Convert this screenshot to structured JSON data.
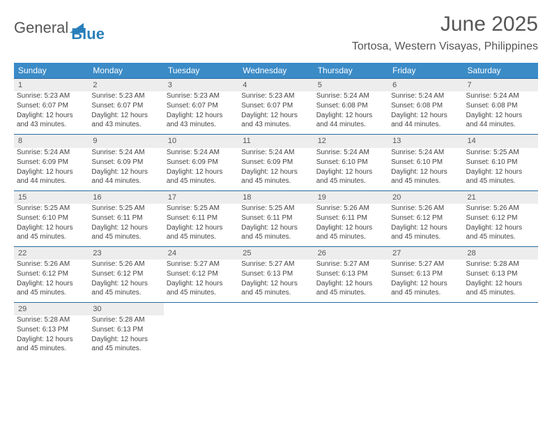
{
  "logo": {
    "text1": "General",
    "text2": "Blue"
  },
  "title": "June 2025",
  "location": "Tortosa, Western Visayas, Philippines",
  "colors": {
    "header_bg": "#3b8bc7",
    "daynum_bg": "#ededed",
    "rule": "#2a6aa0",
    "text": "#444444"
  },
  "weekdays": [
    "Sunday",
    "Monday",
    "Tuesday",
    "Wednesday",
    "Thursday",
    "Friday",
    "Saturday"
  ],
  "days": [
    {
      "n": 1,
      "sr": "5:23 AM",
      "ss": "6:07 PM",
      "dl": "12 hours and 43 minutes."
    },
    {
      "n": 2,
      "sr": "5:23 AM",
      "ss": "6:07 PM",
      "dl": "12 hours and 43 minutes."
    },
    {
      "n": 3,
      "sr": "5:23 AM",
      "ss": "6:07 PM",
      "dl": "12 hours and 43 minutes."
    },
    {
      "n": 4,
      "sr": "5:23 AM",
      "ss": "6:07 PM",
      "dl": "12 hours and 43 minutes."
    },
    {
      "n": 5,
      "sr": "5:24 AM",
      "ss": "6:08 PM",
      "dl": "12 hours and 44 minutes."
    },
    {
      "n": 6,
      "sr": "5:24 AM",
      "ss": "6:08 PM",
      "dl": "12 hours and 44 minutes."
    },
    {
      "n": 7,
      "sr": "5:24 AM",
      "ss": "6:08 PM",
      "dl": "12 hours and 44 minutes."
    },
    {
      "n": 8,
      "sr": "5:24 AM",
      "ss": "6:09 PM",
      "dl": "12 hours and 44 minutes."
    },
    {
      "n": 9,
      "sr": "5:24 AM",
      "ss": "6:09 PM",
      "dl": "12 hours and 44 minutes."
    },
    {
      "n": 10,
      "sr": "5:24 AM",
      "ss": "6:09 PM",
      "dl": "12 hours and 45 minutes."
    },
    {
      "n": 11,
      "sr": "5:24 AM",
      "ss": "6:09 PM",
      "dl": "12 hours and 45 minutes."
    },
    {
      "n": 12,
      "sr": "5:24 AM",
      "ss": "6:10 PM",
      "dl": "12 hours and 45 minutes."
    },
    {
      "n": 13,
      "sr": "5:24 AM",
      "ss": "6:10 PM",
      "dl": "12 hours and 45 minutes."
    },
    {
      "n": 14,
      "sr": "5:25 AM",
      "ss": "6:10 PM",
      "dl": "12 hours and 45 minutes."
    },
    {
      "n": 15,
      "sr": "5:25 AM",
      "ss": "6:10 PM",
      "dl": "12 hours and 45 minutes."
    },
    {
      "n": 16,
      "sr": "5:25 AM",
      "ss": "6:11 PM",
      "dl": "12 hours and 45 minutes."
    },
    {
      "n": 17,
      "sr": "5:25 AM",
      "ss": "6:11 PM",
      "dl": "12 hours and 45 minutes."
    },
    {
      "n": 18,
      "sr": "5:25 AM",
      "ss": "6:11 PM",
      "dl": "12 hours and 45 minutes."
    },
    {
      "n": 19,
      "sr": "5:26 AM",
      "ss": "6:11 PM",
      "dl": "12 hours and 45 minutes."
    },
    {
      "n": 20,
      "sr": "5:26 AM",
      "ss": "6:12 PM",
      "dl": "12 hours and 45 minutes."
    },
    {
      "n": 21,
      "sr": "5:26 AM",
      "ss": "6:12 PM",
      "dl": "12 hours and 45 minutes."
    },
    {
      "n": 22,
      "sr": "5:26 AM",
      "ss": "6:12 PM",
      "dl": "12 hours and 45 minutes."
    },
    {
      "n": 23,
      "sr": "5:26 AM",
      "ss": "6:12 PM",
      "dl": "12 hours and 45 minutes."
    },
    {
      "n": 24,
      "sr": "5:27 AM",
      "ss": "6:12 PM",
      "dl": "12 hours and 45 minutes."
    },
    {
      "n": 25,
      "sr": "5:27 AM",
      "ss": "6:13 PM",
      "dl": "12 hours and 45 minutes."
    },
    {
      "n": 26,
      "sr": "5:27 AM",
      "ss": "6:13 PM",
      "dl": "12 hours and 45 minutes."
    },
    {
      "n": 27,
      "sr": "5:27 AM",
      "ss": "6:13 PM",
      "dl": "12 hours and 45 minutes."
    },
    {
      "n": 28,
      "sr": "5:28 AM",
      "ss": "6:13 PM",
      "dl": "12 hours and 45 minutes."
    },
    {
      "n": 29,
      "sr": "5:28 AM",
      "ss": "6:13 PM",
      "dl": "12 hours and 45 minutes."
    },
    {
      "n": 30,
      "sr": "5:28 AM",
      "ss": "6:13 PM",
      "dl": "12 hours and 45 minutes."
    }
  ],
  "labels": {
    "sunrise": "Sunrise:",
    "sunset": "Sunset:",
    "daylight": "Daylight:"
  }
}
